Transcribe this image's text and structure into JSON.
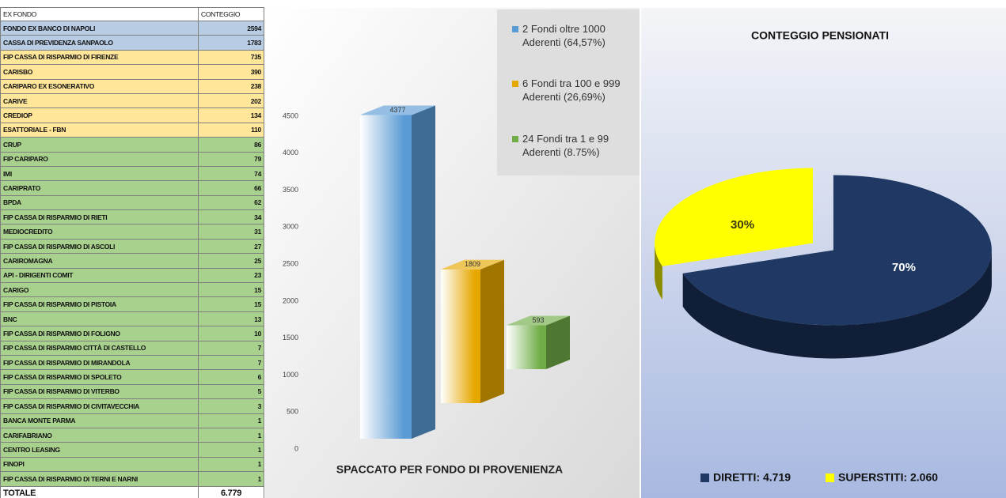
{
  "table": {
    "header": [
      "EX FONDO",
      "CONTEGGIO"
    ],
    "rows": [
      {
        "cells": [
          "FONDO EX BANCO DI NAPOLI",
          2594
        ],
        "color": "#b8cce4"
      },
      {
        "cells": [
          "CASSA DI PREVIDENZA SANPAOLO",
          1783
        ],
        "color": "#b8cce4"
      },
      {
        "cells": [
          "FIP CASSA DI RISPARMIO DI FIRENZE",
          735
        ],
        "color": "#ffe699"
      },
      {
        "cells": [
          "CARISBO",
          390
        ],
        "color": "#ffe699"
      },
      {
        "cells": [
          "CARIPARO EX ESONERATIVO",
          238
        ],
        "color": "#ffe699"
      },
      {
        "cells": [
          "CARIVE",
          202
        ],
        "color": "#ffe699"
      },
      {
        "cells": [
          "CREDIOP",
          134
        ],
        "color": "#ffe699"
      },
      {
        "cells": [
          "ESATTORIALE - FBN",
          110
        ],
        "color": "#ffe699"
      },
      {
        "cells": [
          "CRUP",
          86
        ],
        "color": "#a9d18e"
      },
      {
        "cells": [
          "FIP CARIPARO",
          79
        ],
        "color": "#a9d18e"
      },
      {
        "cells": [
          "IMI",
          74
        ],
        "color": "#a9d18e"
      },
      {
        "cells": [
          "CARIPRATO",
          66
        ],
        "color": "#a9d18e"
      },
      {
        "cells": [
          "BPDA",
          62
        ],
        "color": "#a9d18e"
      },
      {
        "cells": [
          "FIP CASSA DI RISPARMIO DI RIETI",
          34
        ],
        "color": "#a9d18e"
      },
      {
        "cells": [
          "MEDIOCREDITO",
          31
        ],
        "color": "#a9d18e"
      },
      {
        "cells": [
          "FIP CASSA DI RISPARMIO DI ASCOLI",
          27
        ],
        "color": "#a9d18e"
      },
      {
        "cells": [
          "CARIROMAGNA",
          25
        ],
        "color": "#a9d18e"
      },
      {
        "cells": [
          "API - DIRIGENTI COMIT",
          23
        ],
        "color": "#a9d18e"
      },
      {
        "cells": [
          "CARIGO",
          15
        ],
        "color": "#a9d18e"
      },
      {
        "cells": [
          "FIP CASSA DI RISPARMIO DI PISTOIA",
          15
        ],
        "color": "#a9d18e"
      },
      {
        "cells": [
          "BNC",
          13
        ],
        "color": "#a9d18e"
      },
      {
        "cells": [
          "FIP CASSA DI RISPARMIO DI FOLIGNO",
          10
        ],
        "color": "#a9d18e"
      },
      {
        "cells": [
          "FIP CASSA DI RISPARMIO CITTÀ DI CASTELLO",
          7
        ],
        "color": "#a9d18e"
      },
      {
        "cells": [
          "FIP CASSA DI RISPARMIO DI MIRANDOLA",
          7
        ],
        "color": "#a9d18e"
      },
      {
        "cells": [
          "FIP CASSA DI RISPARMIO DI SPOLETO",
          6
        ],
        "color": "#a9d18e"
      },
      {
        "cells": [
          "FIP CASSA DI RISPARMIO DI VITERBO",
          5
        ],
        "color": "#a9d18e"
      },
      {
        "cells": [
          "FIP CASSA DI RISPARMIO DI CIVITAVECCHIA",
          3
        ],
        "color": "#a9d18e"
      },
      {
        "cells": [
          "BANCA MONTE PARMA",
          1
        ],
        "color": "#a9d18e"
      },
      {
        "cells": [
          "CARIFABRIANO",
          1
        ],
        "color": "#a9d18e"
      },
      {
        "cells": [
          "CENTRO LEASING",
          1
        ],
        "color": "#a9d18e"
      },
      {
        "cells": [
          "FINOPI",
          1
        ],
        "color": "#a9d18e"
      },
      {
        "cells": [
          "FIP CASSA DI RISPARMIO DI TERNI E NARNI",
          1
        ],
        "color": "#a9d18e"
      }
    ],
    "total": [
      "TOTALE",
      "6.779"
    ]
  },
  "chart_data": [
    {
      "type": "bar",
      "title": "SPACCATO PER FONDO DI PROVENIENZA",
      "categories": [
        null
      ],
      "series": [
        {
          "name": "2 Fondi oltre 1000 Aderenti (64,57%)",
          "color": "#5b9bd5",
          "values": [
            4377
          ]
        },
        {
          "name": "6 Fondi tra 100 e 999 Aderenti (26,69%)",
          "color": "#e6a800",
          "values": [
            1809
          ]
        },
        {
          "name": "24 Fondi tra 1 e 99 Aderenti (8.75%)",
          "color": "#70ad47",
          "values": [
            593
          ]
        }
      ],
      "ylim": [
        0,
        4500
      ],
      "yticks": [
        0,
        500,
        1000,
        1500,
        2000,
        2500,
        3000,
        3500,
        4000,
        4500
      ]
    },
    {
      "type": "pie",
      "title": "CONTEGGIO PENSIONATI",
      "categories": [
        "DIRETTI: 4.719",
        "SUPERSTITI: 2.060"
      ],
      "values": [
        70,
        30
      ],
      "value_labels": [
        "70%",
        "30%"
      ],
      "colors": [
        "#1f3864",
        "#ffff00"
      ]
    }
  ]
}
